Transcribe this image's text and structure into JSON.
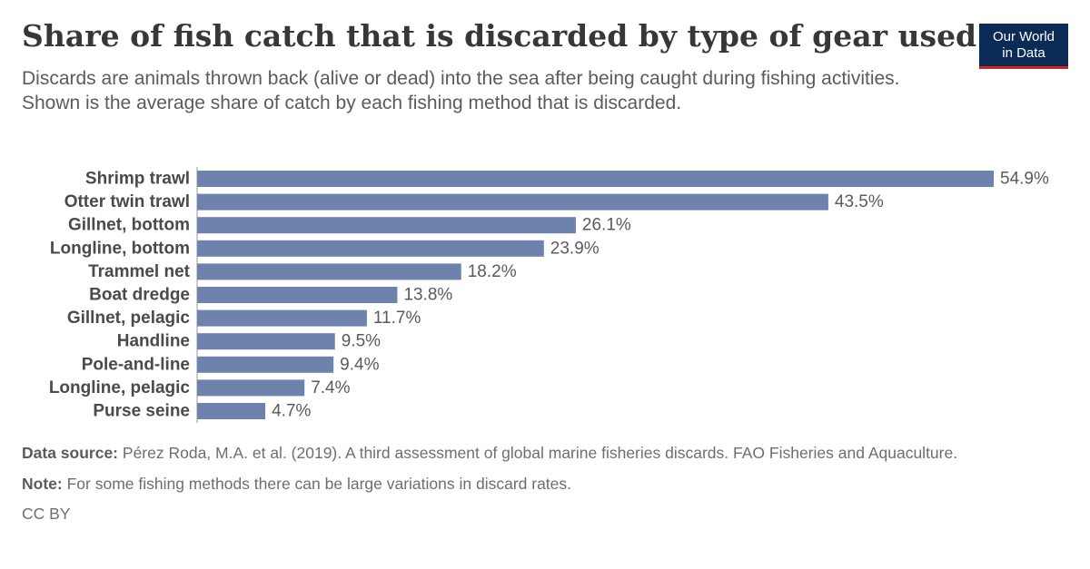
{
  "header": {
    "title": "Share of fish catch that is discarded by type of gear used",
    "subtitle_lines": [
      "Discards are animals thrown back (alive or dead) into the sea after being caught during fishing activities.",
      "Shown is the average share of catch by each fishing method that is discarded."
    ]
  },
  "logo": {
    "line1": "Our World",
    "line2": "in Data"
  },
  "chart_data": {
    "type": "bar",
    "orientation": "horizontal",
    "title": "",
    "xlabel": "",
    "ylabel": "",
    "xlim": [
      0,
      54.9
    ],
    "bar_color": "#6d83ad",
    "value_suffix": "%",
    "categories": [
      "Shrimp trawl",
      "Otter twin trawl",
      "Gillnet, bottom",
      "Longline, bottom",
      "Trammel net",
      "Boat dredge",
      "Gillnet, pelagic",
      "Handline",
      "Pole-and-line",
      "Longline, pelagic",
      "Purse seine"
    ],
    "values": [
      54.9,
      43.5,
      26.1,
      23.9,
      18.2,
      13.8,
      11.7,
      9.5,
      9.4,
      7.4,
      4.7
    ],
    "data_labels": [
      "54.9%",
      "43.5%",
      "26.1%",
      "23.9%",
      "18.2%",
      "13.8%",
      "11.7%",
      "9.5%",
      "9.4%",
      "7.4%",
      "4.7%"
    ]
  },
  "footer": {
    "source_label": "Data source:",
    "source_text": "Pérez Roda, M.A. et al. (2019). A third assessment of global marine fisheries discards. FAO Fisheries and Aquaculture.",
    "note_label": "Note:",
    "note_text": "For some fishing methods there can be large variations in discard rates.",
    "license": "CC BY"
  }
}
